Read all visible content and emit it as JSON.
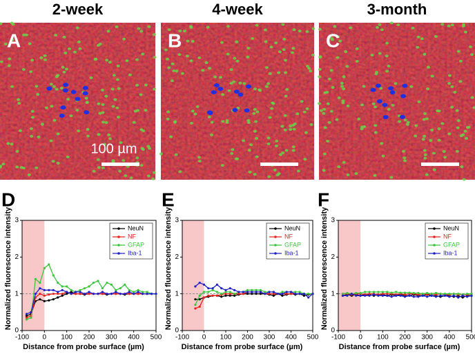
{
  "panels": [
    {
      "title": "2-week",
      "letter": "A"
    },
    {
      "title": "4-week",
      "letter": "B"
    },
    {
      "title": "3-month",
      "letter": "C"
    }
  ],
  "scale_bar_label": "100 µm",
  "chart_data": [
    {
      "type": "line",
      "label": "D",
      "xlabel": "Distance from probe surface (µm)",
      "ylabel": "Normalized fluorescence intensity",
      "xlim": [
        -100,
        500
      ],
      "xticks": [
        -100,
        0,
        100,
        200,
        300,
        400,
        500
      ],
      "ylim": [
        0,
        3
      ],
      "yticks": [
        0,
        1,
        2,
        3
      ],
      "shaded_region": [
        -100,
        0
      ],
      "reference_line": 1,
      "x": [
        -80,
        -60,
        -40,
        -20,
        0,
        20,
        40,
        60,
        80,
        100,
        120,
        140,
        160,
        180,
        200,
        220,
        240,
        260,
        280,
        300,
        320,
        340,
        360,
        380,
        400,
        420,
        440,
        460,
        480,
        500
      ],
      "series": [
        {
          "name": "NeuN",
          "color": "#000000",
          "values": [
            0.4,
            0.45,
            0.8,
            0.85,
            0.8,
            0.82,
            0.85,
            0.9,
            0.95,
            1.0,
            1.05,
            1.0,
            1.0,
            0.98,
            1.0,
            1.0,
            1.0,
            1.0,
            0.98,
            1.0,
            1.0,
            1.0,
            0.98,
            1.0,
            1.0,
            1.0,
            1.0,
            1.0,
            1.0,
            1.0
          ]
        },
        {
          "name": "NF",
          "color": "#e8201c",
          "values": [
            0.35,
            0.4,
            0.9,
            1.0,
            0.95,
            0.98,
            1.0,
            1.0,
            1.0,
            1.05,
            1.0,
            1.0,
            1.0,
            1.0,
            1.0,
            1.0,
            1.0,
            1.0,
            1.0,
            1.0,
            1.0,
            1.0,
            1.0,
            1.0,
            1.0,
            1.0,
            1.0,
            1.0,
            1.0,
            1.0
          ]
        },
        {
          "name": "GFAP",
          "color": "#3cc43c",
          "values": [
            0.3,
            0.35,
            1.4,
            1.3,
            1.7,
            1.8,
            1.5,
            1.3,
            1.2,
            1.2,
            1.1,
            1.05,
            1.1,
            1.15,
            1.2,
            1.3,
            1.35,
            1.15,
            1.3,
            1.25,
            1.1,
            1.15,
            1.25,
            1.1,
            1.05,
            1.1,
            1.05,
            1.05,
            1.0,
            1.0
          ]
        },
        {
          "name": "Iba-1",
          "color": "#2020c8",
          "values": [
            0.45,
            0.5,
            1.0,
            1.15,
            1.1,
            1.1,
            1.1,
            1.05,
            1.1,
            1.05,
            1.0,
            1.05,
            1.05,
            1.0,
            1.05,
            1.0,
            1.0,
            1.05,
            1.0,
            1.0,
            1.05,
            1.0,
            1.0,
            1.05,
            1.0,
            1.05,
            1.0,
            1.0,
            1.0,
            1.0
          ]
        }
      ]
    },
    {
      "type": "line",
      "label": "E",
      "xlabel": "Distance from probe surface (µm)",
      "ylabel": "Normalized fluorescence intensity",
      "xlim": [
        -100,
        500
      ],
      "xticks": [
        -100,
        0,
        100,
        200,
        300,
        400,
        500
      ],
      "ylim": [
        0,
        3
      ],
      "yticks": [
        0,
        1,
        2,
        3
      ],
      "shaded_region": [
        -100,
        0
      ],
      "reference_line": 1,
      "x": [
        -40,
        -20,
        0,
        20,
        40,
        60,
        80,
        100,
        120,
        140,
        160,
        180,
        200,
        220,
        240,
        260,
        280,
        300,
        320,
        340,
        360,
        380,
        400,
        420,
        440,
        460,
        480,
        500
      ],
      "series": [
        {
          "name": "NeuN",
          "color": "#000000",
          "values": [
            0.85,
            0.85,
            0.9,
            0.92,
            0.95,
            0.95,
            0.92,
            0.95,
            0.95,
            0.95,
            0.98,
            1.0,
            1.0,
            1.0,
            1.0,
            1.0,
            1.0,
            0.98,
            0.95,
            1.0,
            0.95,
            0.98,
            1.0,
            0.98,
            1.0,
            0.95,
            0.98,
            1.0
          ]
        },
        {
          "name": "NF",
          "color": "#e8201c",
          "values": [
            0.6,
            0.65,
            0.9,
            0.95,
            0.95,
            0.95,
            0.98,
            1.0,
            1.0,
            1.0,
            1.0,
            1.0,
            1.05,
            1.05,
            1.05,
            1.05,
            1.0,
            1.0,
            1.0,
            1.0,
            1.0,
            1.0,
            1.0,
            1.0,
            1.0,
            1.0,
            1.0,
            1.0
          ]
        },
        {
          "name": "GFAP",
          "color": "#3cc43c",
          "values": [
            0.7,
            0.95,
            1.05,
            1.05,
            1.1,
            1.05,
            1.0,
            1.05,
            1.05,
            1.0,
            1.05,
            1.05,
            1.1,
            1.1,
            1.1,
            1.1,
            1.05,
            1.05,
            1.05,
            1.0,
            1.05,
            1.05,
            1.05,
            1.05,
            1.05,
            1.0,
            1.0,
            1.0
          ]
        },
        {
          "name": "Iba-1",
          "color": "#2020c8",
          "values": [
            1.2,
            1.3,
            1.25,
            1.15,
            1.15,
            1.25,
            1.15,
            1.1,
            1.15,
            1.1,
            1.05,
            1.05,
            1.05,
            1.05,
            1.05,
            1.05,
            1.0,
            1.05,
            1.05,
            1.0,
            1.0,
            1.05,
            1.05,
            1.0,
            1.0,
            1.0,
            0.9,
            1.0
          ]
        }
      ]
    },
    {
      "type": "line",
      "label": "F",
      "xlabel": "Distance from probe surface (µm)",
      "ylabel": "Normalized fluorescence intensity",
      "xlim": [
        -100,
        500
      ],
      "xticks": [
        -100,
        0,
        100,
        200,
        300,
        400,
        500
      ],
      "ylim": [
        0,
        3
      ],
      "yticks": [
        0,
        1,
        2,
        3
      ],
      "shaded_region": [
        -100,
        0
      ],
      "reference_line": 1,
      "x": [
        -80,
        -60,
        -40,
        -20,
        0,
        20,
        40,
        60,
        80,
        100,
        120,
        140,
        160,
        180,
        200,
        220,
        240,
        260,
        280,
        300,
        320,
        340,
        360,
        380,
        400,
        420,
        440,
        460,
        480,
        500
      ],
      "series": [
        {
          "name": "NeuN",
          "color": "#000000",
          "values": [
            0.95,
            0.98,
            0.95,
            0.98,
            0.95,
            0.98,
            0.98,
            0.95,
            0.98,
            0.98,
            0.95,
            0.98,
            0.95,
            0.98,
            0.95,
            0.95,
            0.98,
            0.95,
            0.95,
            0.98,
            0.95,
            0.95,
            0.92,
            0.95,
            0.95,
            0.92,
            0.95,
            0.9,
            0.95,
            0.95
          ]
        },
        {
          "name": "NF",
          "color": "#e8201c",
          "values": [
            1.0,
            1.0,
            0.98,
            1.0,
            1.0,
            0.98,
            1.0,
            1.0,
            0.98,
            1.0,
            1.0,
            1.0,
            0.98,
            1.0,
            0.98,
            1.0,
            1.0,
            0.98,
            1.0,
            0.98,
            1.0,
            0.98,
            1.0,
            0.98,
            0.98,
            1.0,
            0.98,
            0.98,
            0.98,
            1.0
          ]
        },
        {
          "name": "GFAP",
          "color": "#3cc43c",
          "values": [
            1.0,
            1.02,
            1.0,
            1.02,
            1.02,
            1.05,
            1.05,
            1.05,
            1.05,
            1.05,
            1.05,
            1.03,
            1.05,
            1.03,
            1.03,
            1.03,
            1.02,
            1.02,
            1.0,
            1.02,
            1.0,
            1.02,
            1.0,
            1.0,
            1.0,
            1.0,
            1.0,
            0.98,
            1.0,
            1.0
          ]
        },
        {
          "name": "Iba-1",
          "color": "#2020c8",
          "values": [
            0.95,
            0.95,
            1.0,
            0.95,
            0.95,
            0.95,
            0.95,
            0.98,
            0.95,
            0.95,
            0.95,
            0.92,
            0.95,
            0.95,
            0.92,
            0.95,
            0.92,
            0.92,
            0.95,
            0.92,
            0.95,
            0.92,
            0.95,
            0.95,
            0.92,
            0.95,
            0.9,
            0.95,
            0.92,
            0.95
          ]
        }
      ]
    }
  ]
}
